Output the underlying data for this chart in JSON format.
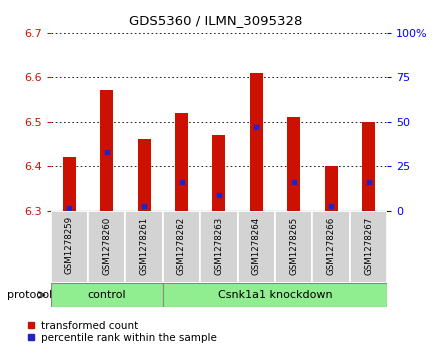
{
  "title": "GDS5360 / ILMN_3095328",
  "samples": [
    "GSM1278259",
    "GSM1278260",
    "GSM1278261",
    "GSM1278262",
    "GSM1278263",
    "GSM1278264",
    "GSM1278265",
    "GSM1278266",
    "GSM1278267"
  ],
  "transformed_counts": [
    6.42,
    6.57,
    6.46,
    6.52,
    6.47,
    6.61,
    6.51,
    6.4,
    6.5
  ],
  "percentile_ranks": [
    1.5,
    33,
    2.5,
    16,
    9,
    47,
    16,
    2.5,
    16
  ],
  "ylim_left": [
    6.3,
    6.7
  ],
  "ylim_right": [
    0,
    100
  ],
  "left_ticks": [
    6.3,
    6.4,
    6.5,
    6.6,
    6.7
  ],
  "right_ticks": [
    0,
    25,
    50,
    75,
    100
  ],
  "right_tick_labels": [
    "0",
    "25",
    "50",
    "75",
    "100%"
  ],
  "bar_color": "#cc1100",
  "dot_color": "#2222cc",
  "n_control": 3,
  "n_knockdown": 6,
  "control_label": "control",
  "knockdown_label": "Csnk1a1 knockdown",
  "protocol_label": "protocol",
  "legend_red": "transformed count",
  "legend_blue": "percentile rank within the sample",
  "group_box_color": "#90ee90",
  "sample_box_color": "#d3d3d3",
  "bar_width": 0.35
}
